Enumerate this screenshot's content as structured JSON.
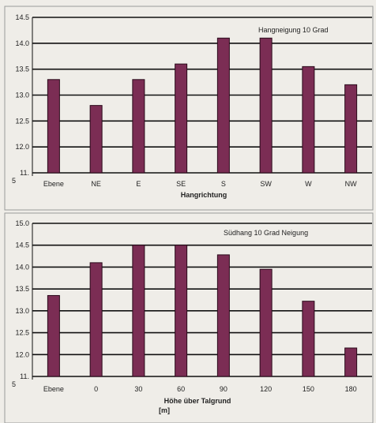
{
  "chart_data": [
    {
      "type": "bar",
      "annotation": "Hangneigung 10 Grad",
      "xlabel": "Hangrichtung",
      "xlabel_2": "",
      "categories": [
        "Ebene",
        "NE",
        "E",
        "SE",
        "S",
        "SW",
        "W",
        "NW"
      ],
      "values": [
        13.3,
        12.8,
        13.3,
        13.6,
        14.1,
        14.1,
        13.55,
        13.2
      ],
      "ylim": [
        11.5,
        14.5
      ],
      "yticks": [
        "14.5",
        "14.0",
        "13.5",
        "13.0",
        "12.5",
        "12.0"
      ],
      "ybottom_label": [
        "11.",
        "5"
      ],
      "bar_color": "#7b2d54",
      "grid": true
    },
    {
      "type": "bar",
      "annotation": "Südhang  10 Grad Neigung",
      "xlabel": "Höhe über Talgrund",
      "xlabel_2": "[m]",
      "categories": [
        "Ebene",
        "0",
        "30",
        "60",
        "90",
        "120",
        "150",
        "180"
      ],
      "values": [
        13.35,
        14.1,
        14.5,
        14.5,
        14.28,
        13.95,
        13.22,
        12.15
      ],
      "ylim": [
        11.5,
        15.0
      ],
      "yticks": [
        "15.0",
        "14.5",
        "14.0",
        "13.5",
        "13.0",
        "12.5",
        "12.0"
      ],
      "ybottom_label": [
        "11.",
        "5"
      ],
      "bar_color": "#7b2d54",
      "grid": true
    }
  ]
}
